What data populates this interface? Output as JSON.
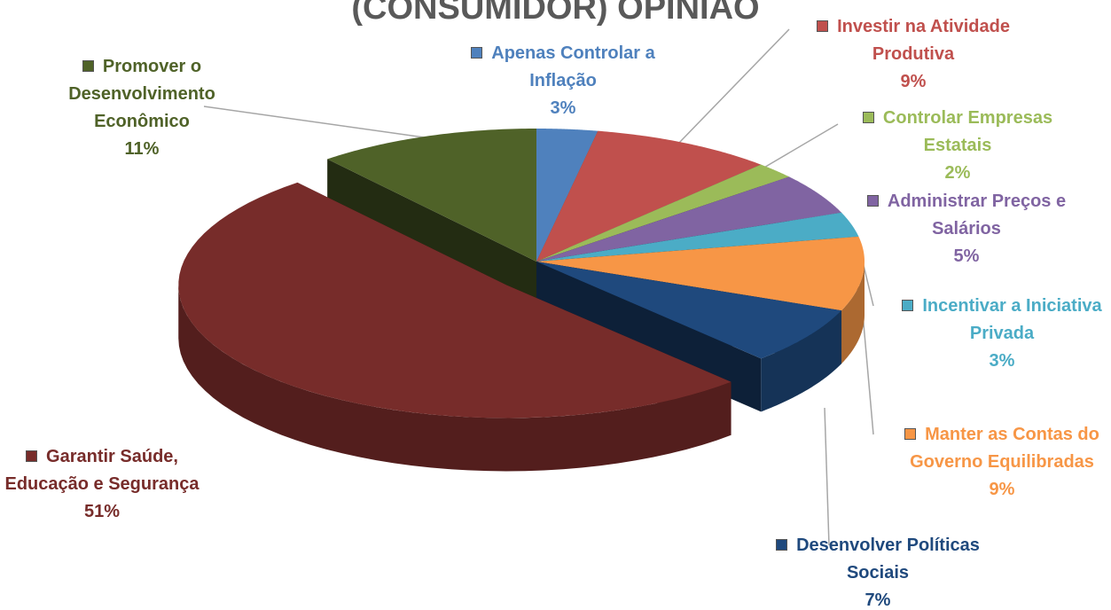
{
  "chart_data": {
    "type": "pie",
    "title": "(CONSUMIDOR) OPINIÃO",
    "categories": [
      "Apenas Controlar a Inflação",
      "Investir na Atividade Produtiva",
      "Controlar Empresas Estatais",
      "Administrar Preços e Salários",
      "Incentivar a Iniciativa Privada",
      "Manter as Contas do Governo Equilibradas",
      "Desenvolver Políticas Sociais",
      "Garantir Saúde, Educação e Segurança",
      "Promover o Desenvolvimento Econômico"
    ],
    "values": [
      3,
      9,
      2,
      5,
      3,
      9,
      7,
      51,
      11
    ],
    "value_labels": [
      "3%",
      "9%",
      "2%",
      "5%",
      "3%",
      "9%",
      "7%",
      "51%",
      "11%"
    ],
    "colors": [
      "#4f81bd",
      "#c0504d",
      "#9bbb59",
      "#8064a2",
      "#4bacc6",
      "#f79646",
      "#1f497d",
      "#772c2a",
      "#4f6228"
    ]
  }
}
